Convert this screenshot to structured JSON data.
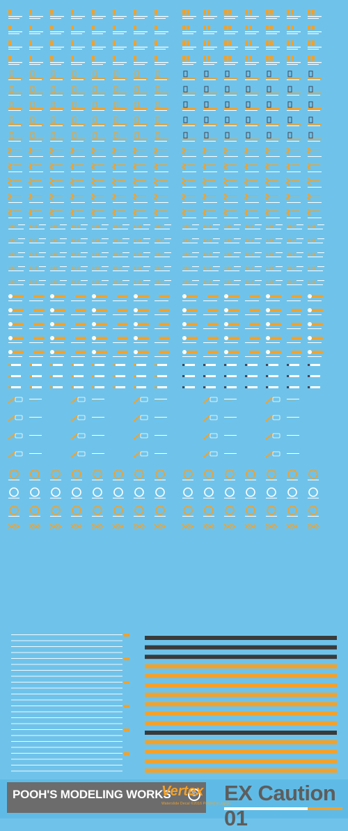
{
  "sheet": {
    "brand": "POOH'S MODELING WORKS",
    "copyright_symbol": "©",
    "product_logo": "Vertex",
    "product_subtitle": "Waterslide Decal ©2016 Printed in Japan",
    "title": "EX Caution 01",
    "colors": {
      "background": "#6fc3ea",
      "orange": "#f3a12a",
      "white": "#ffffff",
      "dark_gray": "#5d5d5d",
      "black_stripe": "#3a3a3a"
    },
    "decal_sections": [
      {
        "type": "caution-label-orange",
        "rows": 4
      },
      {
        "type": "caution-label-bracket",
        "rows": 5
      },
      {
        "type": "caution-label-chevron",
        "rows": 5
      },
      {
        "type": "caution-label-stars",
        "rows": 5
      },
      {
        "type": "caution-label-circle-bar",
        "rows": 5
      },
      {
        "type": "caution-label-arrow-tag",
        "rows": 3
      },
      {
        "type": "callout-lines",
        "rows": 4
      },
      {
        "type": "ring-marks",
        "rows": 3
      },
      {
        "type": "arrow-strips",
        "rows": 1
      },
      {
        "type": "text-blocks",
        "rows": 1
      },
      {
        "type": "hazard-stripes",
        "rows": 1
      }
    ]
  }
}
